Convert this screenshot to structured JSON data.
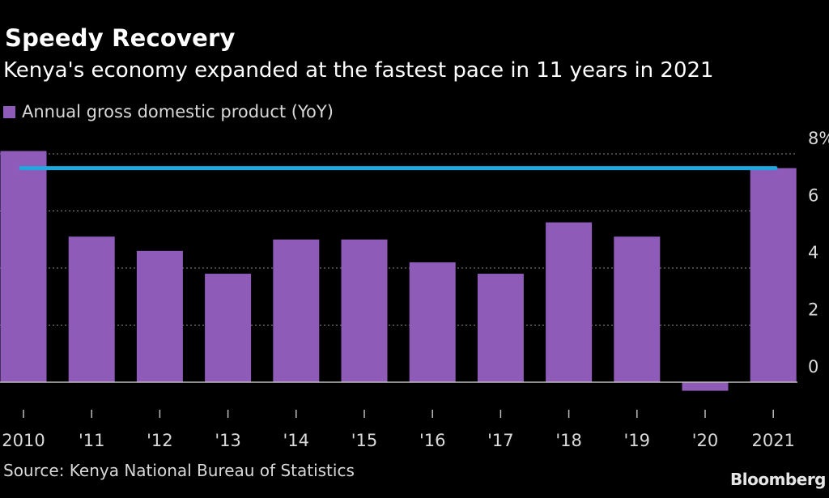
{
  "header": {
    "title": "Speedy Recovery",
    "subtitle": "Kenya's economy expanded at the fastest pace in 11 years in 2021"
  },
  "legend": {
    "label": "Annual gross domestic product (YoY)",
    "color": "#8e5bb8"
  },
  "footer": {
    "source": "Source: Kenya National Bureau of Statistics",
    "brand": "Bloomberg"
  },
  "chart_data": {
    "type": "bar",
    "title": "Speedy Recovery",
    "subtitle": "Kenya's economy expanded at the fastest pace in 11 years in 2021",
    "categories": [
      "2010",
      "'11",
      "'12",
      "'13",
      "'14",
      "'15",
      "'16",
      "'17",
      "'18",
      "'19",
      "'20",
      "2021"
    ],
    "series": [
      {
        "name": "Annual gross domestic product (YoY)",
        "values": [
          8.1,
          5.1,
          4.6,
          3.8,
          5.0,
          5.0,
          4.2,
          3.8,
          5.6,
          5.1,
          -0.3,
          7.5
        ],
        "color": "#8e5bb8"
      }
    ],
    "reference_line": {
      "value": 7.5,
      "color": "#1fa8e0"
    },
    "ylim": [
      -0.3,
      8
    ],
    "yticks": [
      0,
      2,
      4,
      6,
      8
    ],
    "ytick_labels": [
      "0",
      "2",
      "4",
      "6",
      "8%"
    ],
    "grid": true,
    "y_axis_side": "right",
    "xlabel": "",
    "ylabel": ""
  }
}
